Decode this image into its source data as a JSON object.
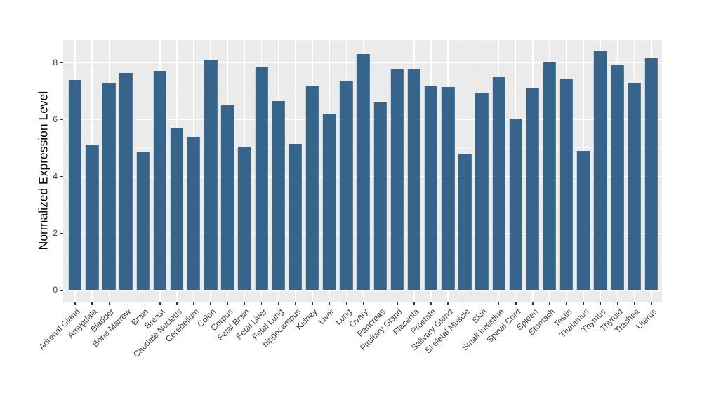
{
  "chart_data": {
    "type": "bar",
    "title": "",
    "xlabel": "",
    "ylabel": "Normalized Expression Level",
    "categories": [
      "Adrenal Gland",
      "Amygdala",
      "Bladder",
      "Bone Marrow",
      "Brain",
      "Breast",
      "Caudate Nucleus",
      "Cerebellum",
      "Colon",
      "Corpus",
      "Fetal Brain",
      "Fetal Liver",
      "Fetal Lung",
      "hippocampus",
      "Kidney",
      "Liver",
      "Lung",
      "Ovary",
      "Pancreas",
      "Pituitary Gland",
      "Placenta",
      "Prostate",
      "Salivary Gland",
      "Skeletal Muscle",
      "Skin",
      "Small Intestine",
      "Spinal Cord",
      "Spleen",
      "Stomach",
      "Testis",
      "Thalamus",
      "Thymus",
      "Thyroid",
      "Trachea",
      "Uterus"
    ],
    "values": [
      7.4,
      5.1,
      7.3,
      7.65,
      4.85,
      7.7,
      5.7,
      5.4,
      8.1,
      6.5,
      5.05,
      7.85,
      6.65,
      5.15,
      7.2,
      6.2,
      7.35,
      8.3,
      6.6,
      7.75,
      7.75,
      7.2,
      7.15,
      4.8,
      6.95,
      7.5,
      6.0,
      7.1,
      8.0,
      7.45,
      4.9,
      8.4,
      7.9,
      7.3,
      8.15
    ],
    "ylim": [
      0,
      8.8
    ],
    "y_ticks": [
      0,
      2,
      4,
      6,
      8
    ],
    "y_minor_ticks": [
      1,
      3,
      5,
      7
    ],
    "grid": "on",
    "legend": "none",
    "colors": {
      "bar": "#36648B",
      "panel_bg": "#EBEBEB",
      "grid_major": "#FFFFFF",
      "grid_minor": "rgba(255,255,255,0.65)",
      "tick_text": "#404040",
      "tick_mark": "#333333",
      "axis_title": "#000000"
    }
  }
}
